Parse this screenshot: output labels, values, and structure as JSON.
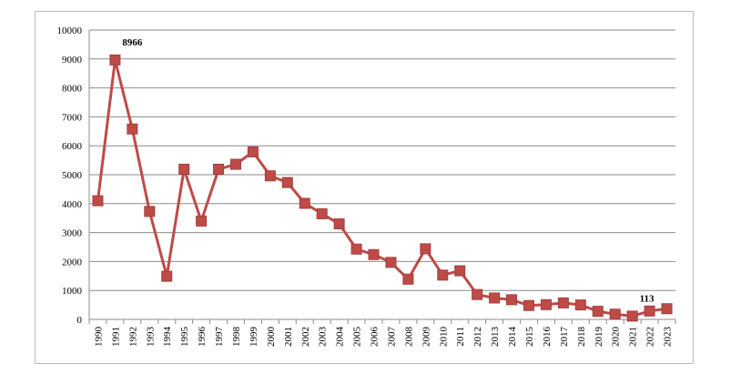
{
  "chart_data": {
    "type": "line",
    "title": "",
    "xlabel": "",
    "ylabel": "",
    "ylim": [
      0,
      10000
    ],
    "yticks": [
      "0",
      "1000",
      "2000",
      "3000",
      "4000",
      "5000",
      "6000",
      "7000",
      "8000",
      "9000",
      "10000"
    ],
    "grid": true,
    "legend": "none",
    "series_color": "#be4b48",
    "categories": [
      "1990",
      "1991",
      "1992",
      "1993",
      "1994",
      "1995",
      "1996",
      "1997",
      "1998",
      "1999",
      "2000",
      "2001",
      "2002",
      "2003",
      "2004",
      "2005",
      "2006",
      "2007",
      "2008",
      "2009",
      "2010",
      "2011",
      "2012",
      "2013",
      "2014",
      "2015",
      "2016",
      "2017",
      "2018",
      "2019",
      "2020",
      "2021",
      "2022",
      "2023"
    ],
    "values": [
      4100,
      8966,
      6580,
      3730,
      1490,
      5190,
      3400,
      5190,
      5360,
      5790,
      4960,
      4730,
      4010,
      3650,
      3300,
      2430,
      2240,
      1970,
      1390,
      2440,
      1530,
      1680,
      860,
      740,
      680,
      480,
      510,
      570,
      500,
      280,
      180,
      113,
      290,
      370
    ],
    "data_labels": [
      {
        "category": "1991",
        "text": "8966"
      },
      {
        "category": "2021",
        "text": "113"
      }
    ]
  }
}
